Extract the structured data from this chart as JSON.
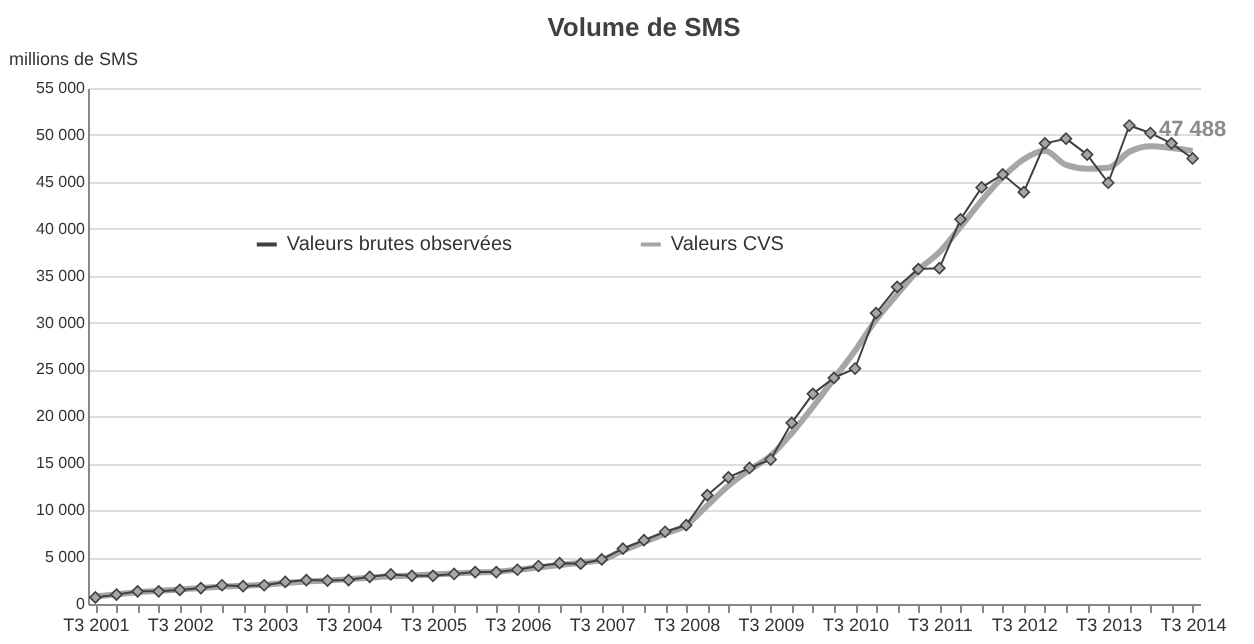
{
  "chart_data": {
    "type": "line",
    "title": "Volume de SMS",
    "ylabel": "millions de SMS",
    "categories": [
      "T3 2001",
      null,
      null,
      null,
      "T3 2002",
      null,
      null,
      null,
      "T3 2003",
      null,
      null,
      null,
      "T3 2004",
      null,
      null,
      null,
      "T3 2005",
      null,
      null,
      null,
      "T3 2006",
      null,
      null,
      null,
      "T3 2007",
      null,
      null,
      null,
      "T3 2008",
      null,
      null,
      null,
      "T3 2009",
      null,
      null,
      null,
      "T3 2010",
      null,
      null,
      null,
      "T3 2011",
      null,
      null,
      null,
      "T3 2012",
      null,
      null,
      null,
      "T3 2013",
      null,
      null,
      null,
      "T3 2014"
    ],
    "series": [
      {
        "name": "Valeurs brutes observées",
        "color": "#404040",
        "marker": "diamond",
        "values": [
          700,
          1000,
          1350,
          1350,
          1500,
          1700,
          2000,
          1900,
          2000,
          2350,
          2550,
          2500,
          2550,
          2900,
          3150,
          3000,
          3000,
          3200,
          3400,
          3400,
          3650,
          4050,
          4350,
          4300,
          4750,
          5900,
          6800,
          7700,
          8400,
          11600,
          13500,
          14500,
          15400,
          19300,
          22400,
          24100,
          25100,
          31000,
          33800,
          35700,
          35800,
          41000,
          44400,
          45800,
          43900,
          49100,
          49600,
          47900,
          44900,
          51000,
          50200,
          49100,
          47488
        ]
      },
      {
        "name": "Valeurs CVS",
        "color": "#a6a6a6",
        "marker": "none",
        "values": [
          800,
          1050,
          1250,
          1400,
          1550,
          1700,
          1850,
          1950,
          2050,
          2250,
          2400,
          2500,
          2650,
          2800,
          2950,
          3050,
          3150,
          3250,
          3350,
          3450,
          3650,
          3900,
          4150,
          4400,
          4700,
          5700,
          6600,
          7500,
          8400,
          10500,
          12600,
          14300,
          15800,
          18200,
          21000,
          24000,
          27000,
          30300,
          33000,
          35600,
          37500,
          40200,
          43000,
          45500,
          47400,
          48300,
          46800,
          46400,
          46500,
          48200,
          48800,
          48600,
          48300
        ]
      }
    ],
    "annotations": [
      {
        "text": "47 488",
        "x": "T3 2014",
        "y": 47488
      }
    ],
    "ylim": [
      0,
      55000
    ],
    "yticks": [
      {
        "value": 0,
        "label": "0"
      },
      {
        "value": 5000,
        "label": "5 000"
      },
      {
        "value": 10000,
        "label": "10 000"
      },
      {
        "value": 15000,
        "label": "15 000"
      },
      {
        "value": 20000,
        "label": "20 000"
      },
      {
        "value": 25000,
        "label": "25 000"
      },
      {
        "value": 30000,
        "label": "30 000"
      },
      {
        "value": 35000,
        "label": "35 000"
      },
      {
        "value": 40000,
        "label": "40 000"
      },
      {
        "value": 45000,
        "label": "45 000"
      },
      {
        "value": 50000,
        "label": "50 000"
      },
      {
        "value": 55000,
        "label": "55 000"
      }
    ],
    "grid": "y",
    "legend": "top left",
    "line_style": "solid"
  }
}
